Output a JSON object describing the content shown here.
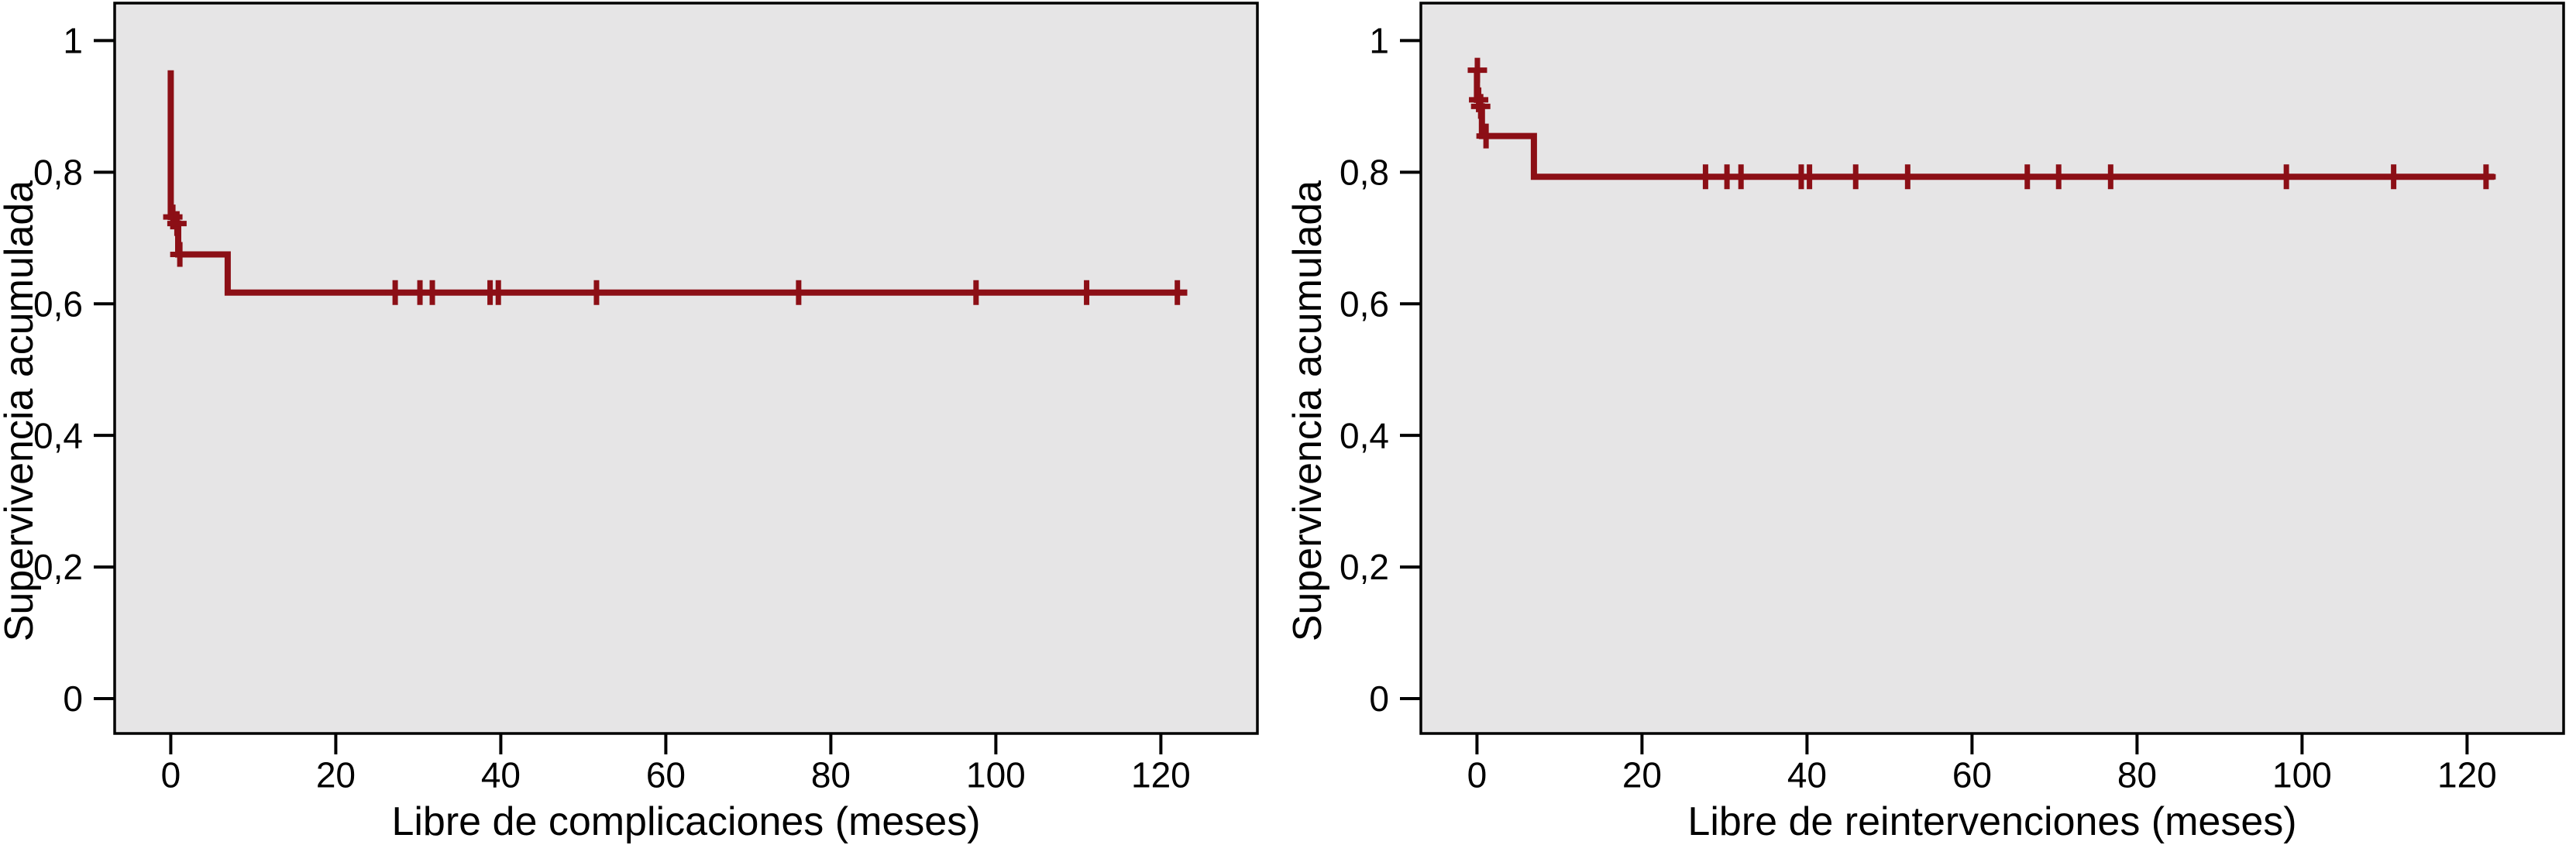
{
  "figure": {
    "description": "Two Kaplan-Meier cumulative survival step curves (SPSS style) side by side",
    "background_color": "#ffffff",
    "panels": [
      {
        "name": "complications-panel"
      },
      {
        "name": "reinterventions-panel"
      }
    ]
  },
  "chart_data": [
    {
      "type": "line",
      "subtype": "kaplan-meier-step",
      "title": "",
      "xlabel": "Libre de complicaciones (meses)",
      "ylabel": "Supervivencia acumulada",
      "xlim": [
        -6.8,
        131.7
      ],
      "ylim": [
        -0.053,
        1.057
      ],
      "x_ticks": [
        0,
        20,
        40,
        60,
        80,
        100,
        120
      ],
      "x_tick_labels": [
        "0",
        "20",
        "40",
        "60",
        "80",
        "100",
        "120"
      ],
      "y_ticks": [
        0,
        0.2,
        0.4,
        0.6,
        0.8,
        1
      ],
      "y_tick_labels": [
        "0",
        "0,2",
        "0,4",
        "0,6",
        "0,8",
        "1"
      ],
      "grid": false,
      "legend": null,
      "line_color": "#8c0f16",
      "plot_bg": "#e6e5e6",
      "step_path": [
        [
          0,
          0.955
        ],
        [
          0,
          0.732
        ],
        [
          0.5,
          0.732
        ],
        [
          0.5,
          0.722
        ],
        [
          0.9,
          0.722
        ],
        [
          0.9,
          0.675
        ],
        [
          6.9,
          0.675
        ],
        [
          6.9,
          0.617
        ],
        [
          123.2,
          0.617
        ]
      ],
      "censor_marks": [
        [
          0.25,
          0.732
        ],
        [
          0.75,
          0.722
        ],
        [
          1.1,
          0.675
        ],
        [
          27.2,
          0.617
        ],
        [
          30.2,
          0.617
        ],
        [
          31.7,
          0.617
        ],
        [
          38.7,
          0.617
        ],
        [
          39.7,
          0.617
        ],
        [
          51.6,
          0.617
        ],
        [
          76.1,
          0.617
        ],
        [
          97.6,
          0.617
        ],
        [
          111.0,
          0.617
        ],
        [
          122.0,
          0.617
        ]
      ]
    },
    {
      "type": "line",
      "subtype": "kaplan-meier-step",
      "title": "",
      "xlabel": "Libre de reintervenciones (meses)",
      "ylabel": "Supervivencia acumulada",
      "xlim": [
        -6.8,
        131.7
      ],
      "ylim": [
        -0.053,
        1.057
      ],
      "x_ticks": [
        0,
        20,
        40,
        60,
        80,
        100,
        120
      ],
      "x_tick_labels": [
        "0",
        "20",
        "40",
        "60",
        "80",
        "100",
        "120"
      ],
      "y_ticks": [
        0,
        0.2,
        0.4,
        0.6,
        0.8,
        1
      ],
      "y_tick_labels": [
        "0",
        "0,2",
        "0,4",
        "0,6",
        "0,8",
        "1"
      ],
      "grid": false,
      "legend": null,
      "line_color": "#8c0f16",
      "plot_bg": "#e6e5e6",
      "step_path": [
        [
          0,
          0.955
        ],
        [
          0,
          0.91
        ],
        [
          0.35,
          0.91
        ],
        [
          0.35,
          0.9
        ],
        [
          0.6,
          0.9
        ],
        [
          0.6,
          0.855
        ],
        [
          6.9,
          0.855
        ],
        [
          6.9,
          0.793
        ],
        [
          123.3,
          0.793
        ]
      ],
      "censor_marks": [
        [
          0.05,
          0.955
        ],
        [
          0.2,
          0.91
        ],
        [
          0.45,
          0.9
        ],
        [
          1.1,
          0.855
        ],
        [
          27.7,
          0.793
        ],
        [
          30.3,
          0.793
        ],
        [
          32.0,
          0.793
        ],
        [
          39.3,
          0.793
        ],
        [
          40.3,
          0.793
        ],
        [
          45.9,
          0.793
        ],
        [
          52.2,
          0.793
        ],
        [
          66.7,
          0.793
        ],
        [
          70.5,
          0.793
        ],
        [
          76.8,
          0.793
        ],
        [
          98.1,
          0.793
        ],
        [
          111.1,
          0.793
        ],
        [
          122.3,
          0.793
        ]
      ]
    }
  ]
}
